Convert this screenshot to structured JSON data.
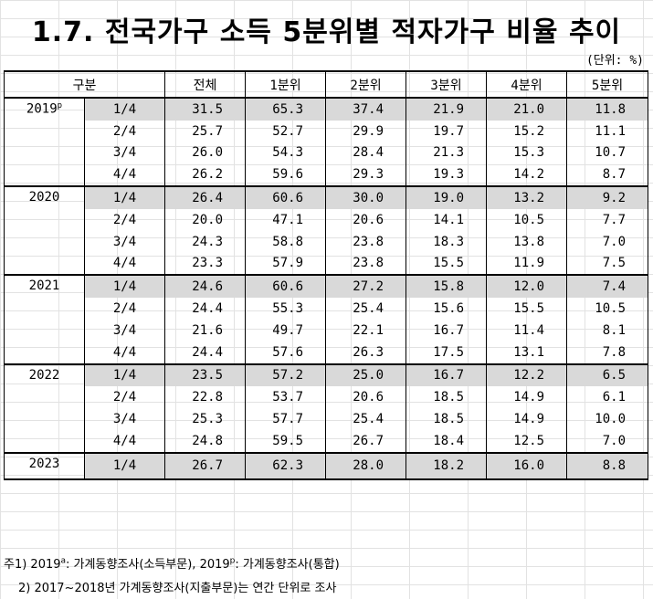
{
  "title": "1.7. 전국가구 소득 5분위별 적자가구 비율 추이",
  "unit": "(단위: %)",
  "columns": [
    "구분",
    "전체",
    "1분위",
    "2분위",
    "3분위",
    "4분위",
    "5분위"
  ],
  "groups": [
    {
      "year": "2019",
      "year_sup": "p",
      "rows": [
        {
          "q": "1/4",
          "v": [
            "31.5",
            "65.3",
            "37.4",
            "21.9",
            "21.0",
            "11.8"
          ]
        },
        {
          "q": "2/4",
          "v": [
            "25.7",
            "52.7",
            "29.9",
            "19.7",
            "15.2",
            "11.1"
          ]
        },
        {
          "q": "3/4",
          "v": [
            "26.0",
            "54.3",
            "28.4",
            "21.3",
            "15.3",
            "10.7"
          ]
        },
        {
          "q": "4/4",
          "v": [
            "26.2",
            "59.6",
            "29.3",
            "19.3",
            "14.2",
            "8.7"
          ]
        }
      ]
    },
    {
      "year": "2020",
      "year_sup": "",
      "rows": [
        {
          "q": "1/4",
          "v": [
            "26.4",
            "60.6",
            "30.0",
            "19.0",
            "13.2",
            "9.2"
          ]
        },
        {
          "q": "2/4",
          "v": [
            "20.0",
            "47.1",
            "20.6",
            "14.1",
            "10.5",
            "7.7"
          ]
        },
        {
          "q": "3/4",
          "v": [
            "24.3",
            "58.8",
            "23.8",
            "18.3",
            "13.8",
            "7.0"
          ]
        },
        {
          "q": "4/4",
          "v": [
            "23.3",
            "57.9",
            "23.8",
            "15.5",
            "11.9",
            "7.5"
          ]
        }
      ]
    },
    {
      "year": "2021",
      "year_sup": "",
      "rows": [
        {
          "q": "1/4",
          "v": [
            "24.6",
            "60.6",
            "27.2",
            "15.8",
            "12.0",
            "7.4"
          ]
        },
        {
          "q": "2/4",
          "v": [
            "24.4",
            "55.3",
            "25.4",
            "15.6",
            "15.5",
            "10.5"
          ]
        },
        {
          "q": "3/4",
          "v": [
            "21.6",
            "49.7",
            "22.1",
            "16.7",
            "11.4",
            "8.1"
          ]
        },
        {
          "q": "4/4",
          "v": [
            "24.4",
            "57.6",
            "26.3",
            "17.5",
            "13.1",
            "7.8"
          ]
        }
      ]
    },
    {
      "year": "2022",
      "year_sup": "",
      "rows": [
        {
          "q": "1/4",
          "v": [
            "23.5",
            "57.2",
            "25.0",
            "16.7",
            "12.2",
            "6.5"
          ]
        },
        {
          "q": "2/4",
          "v": [
            "22.8",
            "53.7",
            "20.6",
            "18.5",
            "14.9",
            "6.1"
          ]
        },
        {
          "q": "3/4",
          "v": [
            "25.3",
            "57.7",
            "25.4",
            "18.5",
            "14.9",
            "10.0"
          ]
        },
        {
          "q": "4/4",
          "v": [
            "24.8",
            "59.5",
            "26.7",
            "18.4",
            "12.5",
            "7.0"
          ]
        }
      ]
    },
    {
      "year": "2023",
      "year_sup": "",
      "rows": [
        {
          "q": "1/4",
          "v": [
            "26.7",
            "62.3",
            "28.0",
            "18.2",
            "16.0",
            "8.8"
          ]
        }
      ]
    }
  ],
  "notes": {
    "note1_pre": "주1) 2019",
    "note1_sup_a": "a",
    "note1_mid": ": 가계동향조사(소득부문), 2019",
    "note1_sup_b": "p",
    "note1_post": ": 가계동향조사(통합)",
    "note2": "2) 2017~2018년 가계동향조사(지출부문)는 연간 단위로 조사"
  },
  "colors": {
    "shade": "#d9d9d9"
  }
}
